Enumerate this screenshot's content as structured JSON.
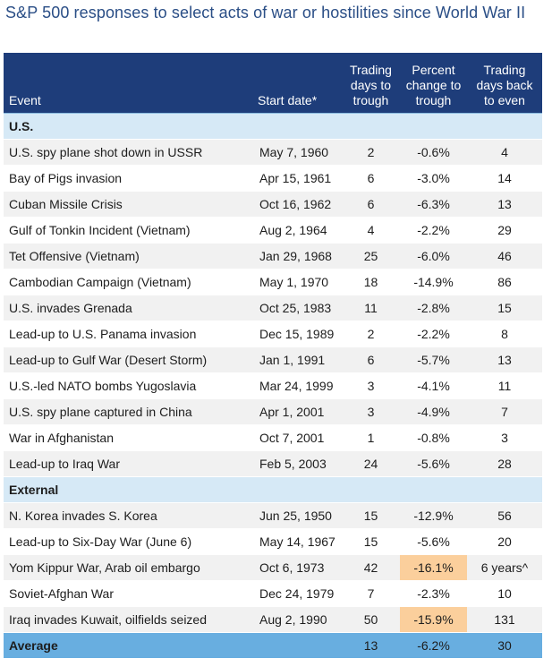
{
  "title": "S&P 500 responses to select acts of war or hostilities since World War II",
  "headers": {
    "event": "Event",
    "start_date": "Start date*",
    "trading_days_to_trough": "Trading days to trough",
    "percent_change": "Percent change to trough",
    "days_back_to_even": "Trading days back to even"
  },
  "sections": [
    {
      "label": "U.S.",
      "rows": [
        {
          "event": "U.S. spy plane shot down in USSR",
          "date": "May 7, 1960",
          "days": "2",
          "pct": "-0.6%",
          "even": "4"
        },
        {
          "event": "Bay of Pigs invasion",
          "date": "Apr 15, 1961",
          "days": "6",
          "pct": "-3.0%",
          "even": "14"
        },
        {
          "event": "Cuban Missile Crisis",
          "date": "Oct 16, 1962",
          "days": "6",
          "pct": "-6.3%",
          "even": "13"
        },
        {
          "event": "Gulf of Tonkin Incident (Vietnam)",
          "date": "Aug 2, 1964",
          "days": "4",
          "pct": "-2.2%",
          "even": "29"
        },
        {
          "event": "Tet Offensive (Vietnam)",
          "date": "Jan 29, 1968",
          "days": "25",
          "pct": "-6.0%",
          "even": "46"
        },
        {
          "event": "Cambodian Campaign (Vietnam)",
          "date": "May 1, 1970",
          "days": "18",
          "pct": "-14.9%",
          "even": "86"
        },
        {
          "event": "U.S. invades Grenada",
          "date": "Oct 25, 1983",
          "days": "11",
          "pct": "-2.8%",
          "even": "15"
        },
        {
          "event": "Lead-up to U.S. Panama invasion",
          "date": "Dec 15, 1989",
          "days": "2",
          "pct": "-2.2%",
          "even": "8"
        },
        {
          "event": "Lead-up to Gulf War (Desert Storm)",
          "date": "Jan 1, 1991",
          "days": "6",
          "pct": "-5.7%",
          "even": "13"
        },
        {
          "event": "U.S.-led NATO bombs Yugoslavia",
          "date": "Mar 24, 1999",
          "days": "3",
          "pct": "-4.1%",
          "even": "11"
        },
        {
          "event": "U.S. spy plane captured in China",
          "date": "Apr 1, 2001",
          "days": "3",
          "pct": "-4.9%",
          "even": "7"
        },
        {
          "event": "War in Afghanistan",
          "date": "Oct 7, 2001",
          "days": "1",
          "pct": "-0.8%",
          "even": "3"
        },
        {
          "event": "Lead-up to Iraq War",
          "date": "Feb 5, 2003",
          "days": "24",
          "pct": "-5.6%",
          "even": "28"
        }
      ]
    },
    {
      "label": "External",
      "rows": [
        {
          "event": "N. Korea invades S. Korea",
          "date": "Jun 25, 1950",
          "days": "15",
          "pct": "-12.9%",
          "even": "56"
        },
        {
          "event": "Lead-up to Six-Day War (June 6)",
          "date": "May 14, 1967",
          "days": "15",
          "pct": "-5.6%",
          "even": "20"
        },
        {
          "event": "Yom Kippur War, Arab oil embargo",
          "date": "Oct 6, 1973",
          "days": "42",
          "pct": "-16.1%",
          "even": "6 years^",
          "highlight": true
        },
        {
          "event": "Soviet-Afghan War",
          "date": "Dec 24, 1979",
          "days": "7",
          "pct": "-2.3%",
          "even": "10"
        },
        {
          "event": "Iraq invades Kuwait, oilfields seized",
          "date": "Aug 2, 1990",
          "days": "50",
          "pct": "-15.9%",
          "even": "131",
          "highlight": true
        }
      ]
    }
  ],
  "average": {
    "label": "Average",
    "days": "13",
    "pct": "-6.2%",
    "even": "30"
  },
  "colors": {
    "title": "#2a4e86",
    "header_bg": "#1e3d7a",
    "section_bg": "#d6e9f6",
    "row_alt_bg": "#f1f1f1",
    "highlight_bg": "#fbcf9c",
    "average_bg": "#68aee0"
  }
}
